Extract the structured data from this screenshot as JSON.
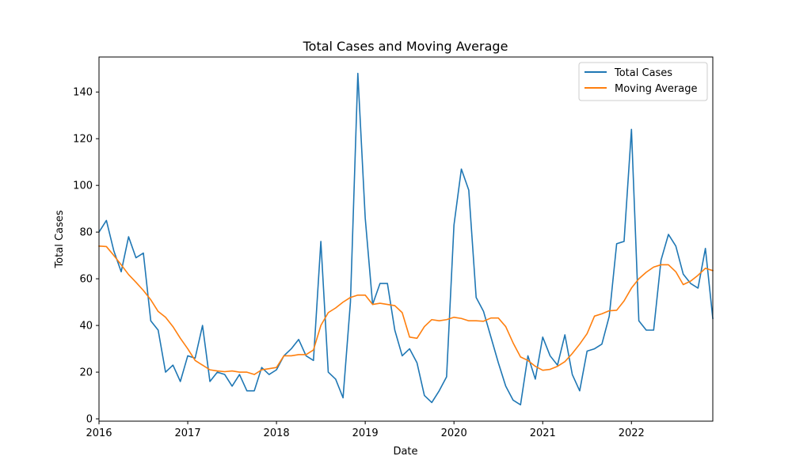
{
  "chart_data": {
    "type": "line",
    "title": "Total Cases and Moving Average",
    "xlabel": "Date",
    "ylabel": "Total Cases",
    "x_start": "2016-01",
    "x_frequency": "monthly",
    "x_ticks": [
      "2016",
      "2017",
      "2018",
      "2019",
      "2020",
      "2021",
      "2022"
    ],
    "xlim": [
      "2016-01",
      "2022-12"
    ],
    "y_ticks": [
      0,
      20,
      40,
      60,
      80,
      100,
      120,
      140
    ],
    "ylim": [
      -1,
      155
    ],
    "grid": false,
    "legend_position": "top-right",
    "series": [
      {
        "name": "Total Cases",
        "color": "#1f77b4",
        "values": [
          80,
          85,
          72,
          63,
          78,
          69,
          71,
          42,
          38,
          20,
          23,
          16,
          27,
          26,
          40,
          16,
          20,
          19,
          14,
          19,
          12,
          12,
          22,
          19,
          21,
          27,
          30,
          34,
          27,
          25,
          76,
          20,
          17,
          9,
          50,
          148,
          86,
          49,
          58,
          58,
          38,
          27,
          30,
          24,
          10,
          7,
          12,
          18,
          83,
          107,
          98,
          52,
          46,
          35,
          24,
          14,
          8,
          6,
          27,
          17,
          35,
          27,
          23,
          36,
          19,
          12,
          29,
          30,
          32,
          44,
          75,
          76,
          124,
          42,
          38,
          38,
          68,
          79,
          74,
          62,
          58,
          56,
          73,
          43
        ]
      },
      {
        "name": "Moving Average",
        "color": "#ff7f0e",
        "values": [
          74,
          73.8,
          70,
          66,
          61.8,
          58.5,
          55,
          51,
          46,
          43.5,
          39.5,
          34.5,
          30,
          25,
          23,
          21,
          20.5,
          20.2,
          20.5,
          20,
          20,
          19,
          21,
          21.5,
          22,
          27,
          27,
          27.5,
          27.5,
          29.5,
          40,
          45.5,
          47.5,
          50,
          52,
          53,
          53,
          49,
          49.5,
          49,
          48.5,
          45.5,
          35,
          34.5,
          39.5,
          42.5,
          42,
          42.5,
          43.5,
          43,
          42,
          42,
          41.8,
          43.2,
          43.2,
          39.5,
          32.5,
          26.5,
          25,
          22.5,
          20.8,
          21.2,
          22.5,
          24.5,
          28,
          32,
          36.5,
          44,
          45,
          46.3,
          46.5,
          50.5,
          56,
          60,
          62.8,
          65,
          66,
          66,
          63,
          57.5,
          59,
          61.5,
          64.5,
          63.5
        ]
      }
    ]
  }
}
